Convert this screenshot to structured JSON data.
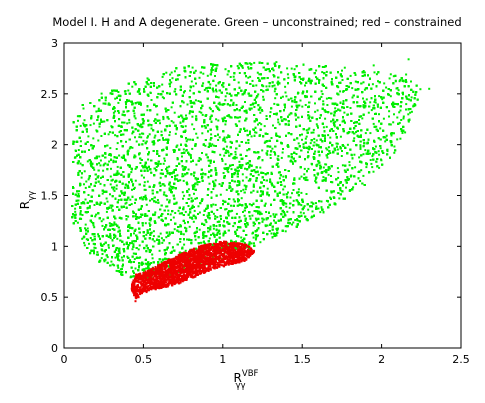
{
  "chart_data": {
    "type": "scatter",
    "title": "Model I. H and A degenerate. Green – unconstrained; red – constrained",
    "xlabel": {
      "main": "R",
      "sub": "γγ",
      "sup": "VBF"
    },
    "ylabel": {
      "main": "R",
      "sub": "γγ"
    },
    "xlim": [
      0,
      2.5
    ],
    "ylim": [
      0,
      3
    ],
    "xticks": [
      "0",
      "0.5",
      "1",
      "1.5",
      "2",
      "2.5"
    ],
    "yticks": [
      "0",
      "0.5",
      "1",
      "1.5",
      "2",
      "2.5",
      "3"
    ],
    "grid": false,
    "series": [
      {
        "color": "#00ee00",
        "region_outline": [
          [
            0.05,
            1.25
          ],
          [
            0.06,
            2.3
          ],
          [
            0.15,
            2.45
          ],
          [
            0.3,
            2.55
          ],
          [
            0.5,
            2.65
          ],
          [
            0.75,
            2.78
          ],
          [
            1.0,
            2.8
          ],
          [
            1.3,
            2.82
          ],
          [
            1.6,
            2.78
          ],
          [
            1.9,
            2.75
          ],
          [
            2.15,
            2.7
          ],
          [
            2.25,
            2.55
          ],
          [
            2.2,
            2.3
          ],
          [
            2.1,
            1.95
          ],
          [
            1.9,
            1.6
          ],
          [
            1.6,
            1.3
          ],
          [
            1.35,
            1.1
          ],
          [
            1.15,
            0.95
          ],
          [
            0.95,
            0.85
          ],
          [
            0.7,
            0.72
          ],
          [
            0.45,
            0.68
          ],
          [
            0.3,
            0.75
          ],
          [
            0.18,
            0.9
          ],
          [
            0.1,
            1.05
          ]
        ],
        "outliers": [
          [
            2.3,
            2.55
          ],
          [
            2.17,
            2.84
          ],
          [
            1.95,
            2.78
          ],
          [
            0.1,
            1.27
          ],
          [
            2.08,
            1.92
          ]
        ],
        "approx_points": 12000
      },
      {
        "color": "#ee0000",
        "region_outline": [
          [
            0.45,
            0.48
          ],
          [
            0.5,
            0.55
          ],
          [
            0.7,
            0.62
          ],
          [
            0.95,
            0.78
          ],
          [
            1.15,
            0.86
          ],
          [
            1.2,
            0.95
          ],
          [
            1.15,
            1.02
          ],
          [
            1.0,
            1.05
          ],
          [
            0.85,
            1.0
          ],
          [
            0.7,
            0.9
          ],
          [
            0.55,
            0.78
          ],
          [
            0.45,
            0.72
          ],
          [
            0.42,
            0.6
          ]
        ],
        "outliers": [
          [
            0.45,
            0.46
          ],
          [
            0.47,
            0.5
          ],
          [
            0.52,
            0.55
          ]
        ],
        "approx_points": 3500
      }
    ]
  }
}
